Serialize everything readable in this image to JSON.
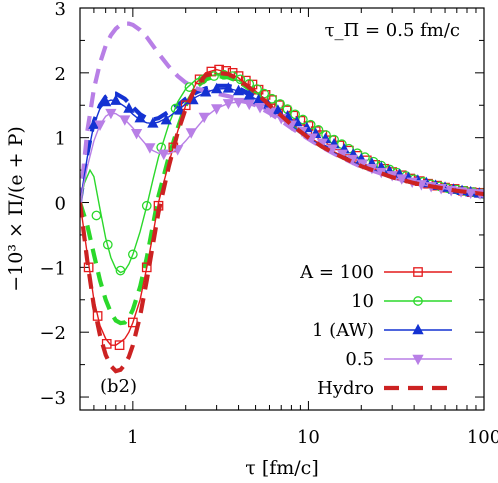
{
  "chart_data": {
    "type": "line",
    "xlabel": "τ [fm/c]",
    "ylabel": "−10³ × Π/(e + P)",
    "annotation": "τ_Π = 0.5 fm/c",
    "panel_label": "(b2)",
    "x_scale": "log",
    "xlim": [
      0.5,
      100
    ],
    "ylim": [
      -3.2,
      3
    ],
    "x_ticks": [
      1,
      10,
      100
    ],
    "x_tick_labels": [
      "1",
      "10",
      "100"
    ],
    "y_ticks": [
      -3,
      -2,
      -1,
      0,
      1,
      2,
      3
    ],
    "y_tick_labels": [
      "−3",
      "−2",
      "−1",
      "0",
      "1",
      "2",
      "3"
    ],
    "legend_position": "bottom-right",
    "series": [
      {
        "name": "A = 100",
        "color": "#e41a1c",
        "style": "solid",
        "marker": "square",
        "x": [
          0.5,
          0.55,
          0.6,
          0.65,
          0.7,
          0.75,
          0.8,
          0.85,
          0.9,
          0.95,
          1.0,
          1.1,
          1.2,
          1.3,
          1.4,
          1.6,
          1.8,
          2.0,
          2.3,
          2.6,
          3.0,
          3.5,
          4.0,
          5.0,
          6.0,
          7.0,
          8.0,
          10,
          12,
          15,
          20,
          30,
          40,
          50,
          70,
          100
        ],
        "y": [
          0,
          -0.8,
          -1.5,
          -1.9,
          -2.1,
          -2.2,
          -2.2,
          -2.15,
          -2.1,
          -2.0,
          -1.85,
          -1.5,
          -1.0,
          -0.5,
          0.0,
          0.6,
          1.1,
          1.5,
          1.85,
          2.0,
          2.05,
          2.0,
          1.92,
          1.72,
          1.52,
          1.36,
          1.22,
          1.02,
          0.88,
          0.74,
          0.58,
          0.41,
          0.31,
          0.26,
          0.19,
          0.14
        ],
        "marker_x": [
          0.56,
          0.63,
          0.71,
          0.84,
          1.0,
          1.2,
          1.4,
          1.7,
          2.0,
          2.4,
          2.8,
          3.1,
          3.4,
          3.7,
          4.0,
          4.4,
          4.8,
          5.2,
          5.7,
          6.2,
          6.8,
          7.5,
          8.2,
          9.0,
          10,
          11,
          12,
          13.5,
          15,
          17,
          19,
          21.5,
          24,
          27,
          30,
          34,
          38,
          43,
          48,
          54,
          60,
          68,
          76,
          85,
          95,
          100
        ],
        "marker_y": [
          -1.0,
          -1.75,
          -2.18,
          -2.2,
          -1.85,
          -1.0,
          -0.05,
          0.85,
          1.5,
          1.9,
          2.02,
          2.05,
          2.03,
          2.0,
          1.95,
          1.88,
          1.82,
          1.74,
          1.66,
          1.58,
          1.5,
          1.42,
          1.34,
          1.26,
          1.18,
          1.1,
          1.04,
          0.96,
          0.88,
          0.8,
          0.72,
          0.65,
          0.58,
          0.52,
          0.47,
          0.42,
          0.37,
          0.33,
          0.29,
          0.26,
          0.23,
          0.21,
          0.18,
          0.16,
          0.15,
          0.14
        ]
      },
      {
        "name": "10",
        "color": "#2bd82b",
        "style": "solid",
        "marker": "circle",
        "x": [
          0.5,
          0.53,
          0.57,
          0.6,
          0.65,
          0.7,
          0.75,
          0.8,
          0.85,
          0.9,
          0.95,
          1.0,
          1.1,
          1.2,
          1.3,
          1.4,
          1.6,
          1.8,
          2.0,
          2.3,
          2.6,
          3.0,
          3.5,
          4.0,
          5.0,
          6.0,
          7.0,
          8.0,
          10,
          12,
          15,
          20,
          30,
          40,
          50,
          70,
          100
        ],
        "y": [
          0,
          0.3,
          0.5,
          0.4,
          -0.1,
          -0.55,
          -0.85,
          -1.02,
          -1.08,
          -1.05,
          -0.95,
          -0.8,
          -0.45,
          -0.05,
          0.35,
          0.7,
          1.2,
          1.55,
          1.75,
          1.9,
          1.95,
          1.97,
          1.95,
          1.88,
          1.7,
          1.5,
          1.34,
          1.2,
          1.0,
          0.86,
          0.72,
          0.56,
          0.4,
          0.3,
          0.25,
          0.18,
          0.13
        ],
        "marker_x": [
          0.62,
          0.72,
          0.85,
          1.0,
          1.2,
          1.45,
          1.75,
          2.1,
          2.5,
          2.9,
          3.3,
          3.7,
          4.1,
          4.6,
          5.1,
          5.6,
          6.2,
          6.9,
          7.6,
          8.4,
          9.3,
          10.3,
          11.4,
          12.6,
          14,
          15.5,
          17,
          19,
          21,
          23.5,
          26,
          29,
          32,
          36,
          40,
          45,
          50,
          56,
          62,
          70,
          78,
          87,
          97,
          100
        ],
        "marker_y": [
          -0.2,
          -0.65,
          -1.05,
          -0.8,
          -0.05,
          0.85,
          1.45,
          1.78,
          1.9,
          1.95,
          1.97,
          1.95,
          1.9,
          1.83,
          1.75,
          1.68,
          1.6,
          1.52,
          1.44,
          1.36,
          1.28,
          1.2,
          1.12,
          1.04,
          0.97,
          0.9,
          0.83,
          0.76,
          0.7,
          0.63,
          0.57,
          0.51,
          0.46,
          0.41,
          0.36,
          0.32,
          0.28,
          0.25,
          0.22,
          0.2,
          0.18,
          0.16,
          0.14,
          0.13
        ]
      },
      {
        "name": "1 (AW)",
        "color": "#1432d2",
        "style": "solid",
        "marker": "triangle",
        "x": [
          0.5,
          0.55,
          0.6,
          0.65,
          0.7,
          0.75,
          0.8,
          0.9,
          1.0,
          1.1,
          1.2,
          1.3,
          1.4,
          1.6,
          1.8,
          2.0,
          2.3,
          2.6,
          3.0,
          3.5,
          4.0,
          5.0,
          6.0,
          7.0,
          8.0,
          10,
          12,
          15,
          20,
          30,
          40,
          50,
          70,
          100
        ],
        "y": [
          0,
          0.7,
          1.2,
          1.45,
          1.55,
          1.58,
          1.57,
          1.48,
          1.36,
          1.27,
          1.23,
          1.22,
          1.24,
          1.32,
          1.42,
          1.52,
          1.63,
          1.7,
          1.75,
          1.76,
          1.72,
          1.6,
          1.45,
          1.3,
          1.18,
          1.0,
          0.86,
          0.72,
          0.56,
          0.4,
          0.3,
          0.25,
          0.18,
          0.13
        ],
        "marker_x": [
          0.6,
          0.7,
          0.8,
          0.95,
          1.1,
          1.3,
          1.55,
          1.85,
          2.2,
          2.6,
          3.0,
          3.5,
          4.0,
          4.6,
          5.2,
          5.9,
          6.7,
          7.6,
          8.6,
          9.8,
          11,
          12.5,
          14,
          16,
          18,
          20,
          23,
          26,
          29,
          33,
          37,
          42,
          47,
          53,
          60,
          67,
          75,
          84,
          94,
          100
        ],
        "marker_y": [
          1.2,
          1.55,
          1.57,
          1.45,
          1.3,
          1.22,
          1.27,
          1.42,
          1.58,
          1.7,
          1.75,
          1.76,
          1.72,
          1.65,
          1.58,
          1.5,
          1.42,
          1.33,
          1.24,
          1.15,
          1.06,
          0.98,
          0.9,
          0.82,
          0.74,
          0.67,
          0.6,
          0.54,
          0.48,
          0.43,
          0.38,
          0.34,
          0.3,
          0.26,
          0.23,
          0.2,
          0.18,
          0.16,
          0.14,
          0.13
        ]
      },
      {
        "name": "0.5",
        "color": "#b87fe6",
        "style": "solid",
        "marker": "triangle-down",
        "x": [
          0.5,
          0.55,
          0.6,
          0.65,
          0.7,
          0.75,
          0.8,
          0.9,
          1.0,
          1.1,
          1.2,
          1.3,
          1.4,
          1.6,
          1.8,
          2.0,
          2.3,
          2.6,
          3.0,
          3.5,
          4.0,
          5.0,
          6.0,
          7.0,
          8.0,
          10,
          12,
          15,
          20,
          30,
          40,
          50,
          70,
          100
        ],
        "y": [
          0,
          0.55,
          0.95,
          1.2,
          1.33,
          1.38,
          1.37,
          1.28,
          1.15,
          1.0,
          0.88,
          0.8,
          0.76,
          0.75,
          0.82,
          0.95,
          1.15,
          1.32,
          1.45,
          1.53,
          1.55,
          1.5,
          1.4,
          1.28,
          1.16,
          0.98,
          0.85,
          0.71,
          0.55,
          0.39,
          0.3,
          0.25,
          0.18,
          0.13
        ],
        "marker_x": [
          0.65,
          0.75,
          0.9,
          1.05,
          1.25,
          1.5,
          1.8,
          2.15,
          2.55,
          3.0,
          3.5,
          4.0,
          4.6,
          5.3,
          6.1,
          7.0,
          8.0,
          9.2,
          10.5,
          12,
          13.7,
          15.6,
          17.8,
          20.3,
          23,
          26,
          30,
          34,
          39,
          44,
          50,
          57,
          65,
          74,
          84,
          95,
          100
        ],
        "marker_y": [
          1.2,
          1.38,
          1.28,
          1.07,
          0.85,
          0.75,
          0.82,
          1.08,
          1.32,
          1.45,
          1.53,
          1.55,
          1.52,
          1.47,
          1.4,
          1.3,
          1.2,
          1.1,
          1.0,
          0.92,
          0.83,
          0.75,
          0.67,
          0.6,
          0.53,
          0.47,
          0.42,
          0.37,
          0.32,
          0.28,
          0.25,
          0.22,
          0.19,
          0.17,
          0.15,
          0.14,
          0.13
        ]
      },
      {
        "name": "Hydro",
        "color": "#cc2222",
        "style": "dashed",
        "marker": "none",
        "x": [
          0.5,
          0.55,
          0.6,
          0.65,
          0.7,
          0.75,
          0.8,
          0.85,
          0.9,
          0.95,
          1.0,
          1.1,
          1.2,
          1.3,
          1.4,
          1.6,
          1.8,
          2.0,
          2.3,
          2.6,
          3.0,
          3.5,
          4.0,
          5.0,
          6.0,
          7.0,
          8.0,
          10,
          12,
          15,
          20,
          30,
          40,
          50,
          70,
          100
        ],
        "y": [
          0,
          -0.9,
          -1.6,
          -2.05,
          -2.35,
          -2.52,
          -2.6,
          -2.58,
          -2.5,
          -2.38,
          -2.2,
          -1.75,
          -1.2,
          -0.65,
          -0.15,
          0.55,
          1.08,
          1.45,
          1.8,
          1.96,
          2.0,
          1.98,
          1.9,
          1.7,
          1.5,
          1.34,
          1.2,
          1.0,
          0.86,
          0.72,
          0.56,
          0.39,
          0.3,
          0.25,
          0.18,
          0.13
        ],
        "extra": [
          {
            "color": "#2bd82b",
            "x": [
              0.5,
              0.55,
              0.6,
              0.65,
              0.7,
              0.75,
              0.8,
              0.85,
              0.9,
              0.95,
              1.0,
              1.1,
              1.2,
              1.3,
              1.4,
              1.6,
              1.8,
              2.0,
              2.3,
              2.6,
              3.0,
              3.5,
              4.0,
              5.0,
              6.0,
              7.0,
              8.0,
              10,
              12,
              15,
              20,
              30,
              40,
              50,
              70,
              100
            ],
            "y": [
              0,
              -0.35,
              -0.8,
              -1.2,
              -1.5,
              -1.7,
              -1.82,
              -1.86,
              -1.85,
              -1.78,
              -1.65,
              -1.3,
              -0.85,
              -0.35,
              0.1,
              0.7,
              1.15,
              1.5,
              1.78,
              1.9,
              1.95,
              1.93,
              1.87,
              1.68,
              1.48,
              1.33,
              1.19,
              1.0,
              0.86,
              0.72,
              0.56,
              0.39,
              0.3,
              0.25,
              0.18,
              0.13
            ]
          },
          {
            "color": "#1432d2",
            "x": [
              0.5,
              0.55,
              0.6,
              0.65,
              0.7,
              0.75,
              0.8,
              0.9,
              1.0,
              1.1,
              1.2,
              1.3,
              1.4,
              1.6,
              1.8,
              2.0,
              2.3,
              2.6,
              3.0,
              3.5,
              4.0,
              5.0,
              6.0,
              7.0,
              8.0,
              10,
              12,
              15,
              20,
              30,
              40,
              50,
              70,
              100
            ],
            "y": [
              0,
              0.75,
              1.25,
              1.5,
              1.63,
              1.68,
              1.68,
              1.6,
              1.47,
              1.36,
              1.3,
              1.28,
              1.3,
              1.4,
              1.5,
              1.6,
              1.7,
              1.76,
              1.8,
              1.8,
              1.76,
              1.63,
              1.48,
              1.33,
              1.2,
              1.02,
              0.88,
              0.73,
              0.57,
              0.4,
              0.31,
              0.25,
              0.18,
              0.13
            ]
          },
          {
            "color": "#b87fe6",
            "x": [
              0.5,
              0.55,
              0.6,
              0.65,
              0.7,
              0.75,
              0.8,
              0.85,
              0.9,
              0.95,
              1.0,
              1.1,
              1.2,
              1.3,
              1.4,
              1.6,
              1.8,
              2.0,
              2.3,
              2.6,
              3.0,
              3.5,
              4.0,
              5.0,
              6.0,
              7.0,
              8.0,
              10,
              12,
              15,
              20,
              30,
              40,
              50,
              70,
              100
            ],
            "y": [
              0,
              1.1,
              1.75,
              2.15,
              2.42,
              2.58,
              2.68,
              2.74,
              2.76,
              2.76,
              2.74,
              2.66,
              2.55,
              2.42,
              2.3,
              2.1,
              1.95,
              1.85,
              1.76,
              1.72,
              1.68,
              1.64,
              1.6,
              1.5,
              1.38,
              1.26,
              1.15,
              0.98,
              0.85,
              0.71,
              0.55,
              0.39,
              0.3,
              0.25,
              0.18,
              0.13
            ]
          }
        ]
      }
    ]
  }
}
